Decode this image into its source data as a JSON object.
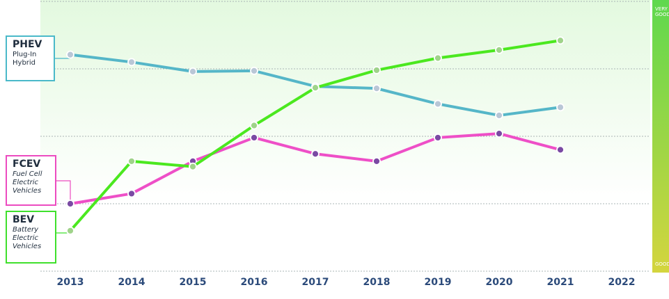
{
  "chart_data": {
    "type": "line",
    "title": "",
    "xlabel": "",
    "ylabel": "",
    "x": [
      2013,
      2014,
      2015,
      2016,
      2017,
      2018,
      2019,
      2020,
      2021,
      2022
    ],
    "x_tick_labels": [
      "2013",
      "2014",
      "2015",
      "2016",
      "2017",
      "2018",
      "2019",
      "2020",
      "2021",
      "2022"
    ],
    "y_scale_labels": {
      "top": "VERY GOOD",
      "bottom": "GOOD"
    },
    "ylim": [
      0,
      4
    ],
    "grid": true,
    "series": [
      {
        "key": "phev",
        "name": "PHEV",
        "description": "Plug-In Hybrid",
        "color": "#55b6c8",
        "values": [
          3.21,
          3.1,
          2.96,
          2.97,
          2.74,
          2.71,
          2.48,
          2.31,
          2.43,
          null
        ]
      },
      {
        "key": "fcev",
        "name": "FCEV",
        "description": "Fuel Cell Electric Vehicles",
        "color": "#ee4fc7",
        "values": [
          1.0,
          1.15,
          1.63,
          1.98,
          1.74,
          1.63,
          1.98,
          2.04,
          1.8,
          null
        ]
      },
      {
        "key": "bev",
        "name": "BEV",
        "description": "Battery Electric Vehicles",
        "color": "#4be81f",
        "values": [
          0.6,
          1.63,
          1.55,
          2.16,
          2.72,
          2.98,
          3.16,
          3.28,
          3.42,
          null
        ]
      }
    ]
  },
  "legend": {
    "phev": {
      "abbr": "PHEV",
      "line1": "Plug-In",
      "line2": "Hybrid"
    },
    "fcev": {
      "abbr": "FCEV",
      "line1": "Fuel Cell",
      "line2": "Electric",
      "line3": "Vehicles"
    },
    "bev": {
      "abbr": "BEV",
      "line1": "Battery",
      "line2": "Electric",
      "line3": "Vehicles"
    }
  },
  "colors": {
    "background_top": "#e3f9df",
    "background_bottom": "#ffffff",
    "scale_bar_top": "#5fd84e",
    "scale_bar_bottom": "#d4d53e",
    "marker_fill_phev": "#b9c7d6",
    "marker_fill_fcev": "#7a4aa3",
    "marker_fill_bev": "#9fd38a",
    "axis_label": "#2b4a7a"
  }
}
